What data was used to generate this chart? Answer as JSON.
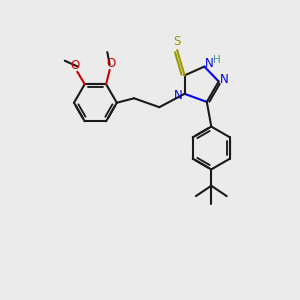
{
  "bg_color": "#ebebeb",
  "bond_color": "#1a1a1a",
  "N_color": "#0000ee",
  "S_color": "#999900",
  "O_color": "#cc0000",
  "H_color": "#4a9090",
  "line_width": 1.5,
  "font_size": 8.5,
  "fig_w": 3.0,
  "fig_h": 3.0,
  "dpi": 100,
  "xlim": [
    0,
    10
  ],
  "ylim": [
    0,
    10
  ]
}
